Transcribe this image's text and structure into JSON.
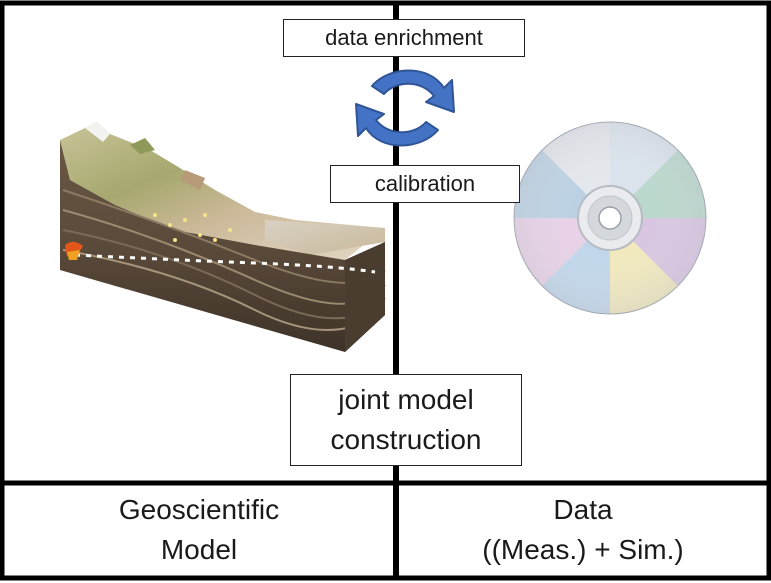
{
  "boxes": {
    "data_enrichment": "data enrichment",
    "calibration": "calibration",
    "joint_line1": "joint model",
    "joint_line2": "construction"
  },
  "captions": {
    "left_line1": "Geoscientific",
    "left_line2": "Model",
    "right_line1": "Data",
    "right_line2": "((Meas.) + Sim.)"
  },
  "colors": {
    "arrow_fill": "#4472C4",
    "arrow_stroke": "#2F5597",
    "frame": "#000000"
  }
}
